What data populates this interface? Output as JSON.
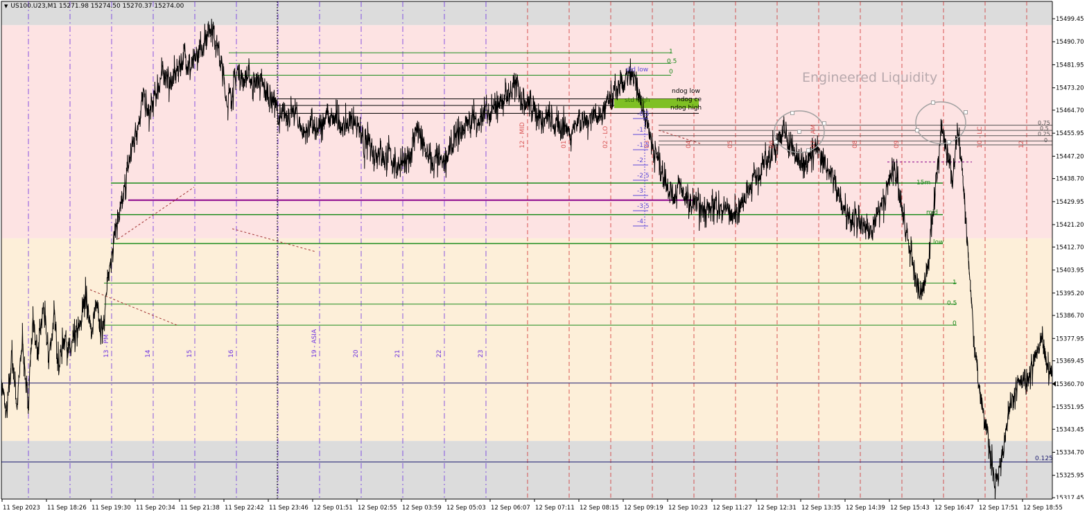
{
  "header": {
    "symbol_line": "US100.U23,M1  15271.98 15274.50 15270.37 15274.00",
    "arrow_icon": "triangle-down-icon"
  },
  "watermark": "Engineered Liquidity",
  "colors": {
    "zone_gray": "#dcdcdc",
    "zone_pink": "#fde3e3",
    "zone_cream": "#fdefd9",
    "session_violet": "#6b2fe0",
    "session_red": "#d03030",
    "level_green": "#1a8a1a",
    "level_black": "#000000",
    "level_purple": "#8a008a",
    "fib_blue": "#5b48d8",
    "hline_navy": "#1a1a6e",
    "ndog_fill": "#7fc024",
    "circle_gray": "#a0a0a0"
  },
  "chart_data": {
    "type": "line",
    "symbol": "US100.U23",
    "timeframe": "M1",
    "ohlc": {
      "open": 15271.98,
      "high": 15274.5,
      "low": 15270.37,
      "close": 15274.0
    },
    "y_ticks": [
      "15499.45",
      "15490.70",
      "15481.95",
      "15473.20",
      "15464.70",
      "15455.95",
      "15447.20",
      "15438.70",
      "15429.95",
      "15421.20",
      "15412.70",
      "15403.95",
      "15395.20",
      "15386.70",
      "15377.95",
      "15369.45",
      "15360.70",
      "15351.95",
      "15343.45",
      "15334.70",
      "15325.95",
      "15317.45"
    ],
    "x_ticks": [
      "11 Sep 2023",
      "11 Sep 18:26",
      "11 Sep 19:30",
      "11 Sep 20:34",
      "11 Sep 21:38",
      "11 Sep 22:42",
      "11 Sep 23:46",
      "12 Sep 01:51",
      "12 Sep 02:55",
      "12 Sep 03:59",
      "12 Sep 05:03",
      "12 Sep 06:07",
      "12 Sep 07:11",
      "12 Sep 08:15",
      "12 Sep 09:19",
      "12 Sep 10:23",
      "12 Sep 11:27",
      "12 Sep 12:31",
      "12 Sep 13:35",
      "12 Sep 14:39",
      "12 Sep 15:43",
      "12 Sep 16:47",
      "12 Sep 17:51",
      "12 Sep 18:55"
    ],
    "ylim": [
      15316,
      15502
    ],
    "price_path": [
      [
        0,
        15362
      ],
      [
        0.5,
        15348
      ],
      [
        1,
        15372
      ],
      [
        1.5,
        15352
      ],
      [
        2,
        15378
      ],
      [
        2.5,
        15352
      ],
      [
        3,
        15385
      ],
      [
        3.5,
        15372
      ],
      [
        4,
        15390
      ],
      [
        4.5,
        15370
      ],
      [
        5,
        15386
      ],
      [
        5.5,
        15368
      ],
      [
        6,
        15380
      ],
      [
        6.5,
        15372
      ],
      [
        7,
        15378
      ],
      [
        7.5,
        15382
      ],
      [
        8,
        15396
      ],
      [
        8.5,
        15380
      ],
      [
        9,
        15390
      ],
      [
        9.5,
        15380
      ],
      [
        10,
        15394
      ],
      [
        10.5,
        15412
      ],
      [
        11,
        15422
      ],
      [
        11.5,
        15428
      ],
      [
        12,
        15442
      ],
      [
        12.5,
        15452
      ],
      [
        13,
        15460
      ],
      [
        13.5,
        15470
      ],
      [
        14,
        15462
      ],
      [
        14.5,
        15468
      ],
      [
        15,
        15475
      ],
      [
        15.5,
        15480
      ],
      [
        16,
        15474
      ],
      [
        16.5,
        15478
      ],
      [
        17,
        15482
      ],
      [
        17.5,
        15486
      ],
      [
        18,
        15480
      ],
      [
        18.5,
        15484
      ],
      [
        19,
        15488
      ],
      [
        19.5,
        15494
      ],
      [
        20,
        15497
      ],
      [
        20.5,
        15490
      ],
      [
        21,
        15480
      ],
      [
        21.5,
        15468
      ],
      [
        22,
        15472
      ],
      [
        22.5,
        15480
      ],
      [
        23,
        15476
      ],
      [
        23.5,
        15478
      ],
      [
        24,
        15474
      ],
      [
        24.5,
        15476
      ],
      [
        25,
        15472
      ],
      [
        25.5,
        15470
      ],
      [
        26,
        15468
      ],
      [
        26.5,
        15460
      ],
      [
        27,
        15464
      ],
      [
        27.5,
        15462
      ],
      [
        28,
        15464
      ],
      [
        28.5,
        15458
      ],
      [
        29,
        15456
      ],
      [
        29.5,
        15460
      ],
      [
        30,
        15455
      ],
      [
        30.5,
        15460
      ],
      [
        31,
        15463
      ],
      [
        31.5,
        15460
      ],
      [
        32,
        15462
      ],
      [
        32.5,
        15458
      ],
      [
        33,
        15460
      ],
      [
        33.5,
        15462
      ],
      [
        34,
        15458
      ],
      [
        34.5,
        15450
      ],
      [
        35,
        15453
      ],
      [
        35.5,
        15448
      ],
      [
        36,
        15450
      ],
      [
        36.5,
        15446
      ],
      [
        37,
        15448
      ],
      [
        37.5,
        15443
      ],
      [
        38,
        15446
      ],
      [
        38.5,
        15443
      ],
      [
        39,
        15450
      ],
      [
        39.5,
        15458
      ],
      [
        40,
        15452
      ],
      [
        40.5,
        15448
      ],
      [
        41,
        15444
      ],
      [
        41.5,
        15446
      ],
      [
        42,
        15444
      ],
      [
        42.5,
        15448
      ],
      [
        43,
        15452
      ],
      [
        43.5,
        15456
      ],
      [
        44,
        15458
      ],
      [
        44.5,
        15460
      ],
      [
        45,
        15462
      ],
      [
        45.5,
        15460
      ],
      [
        46,
        15464
      ],
      [
        46.5,
        15462
      ],
      [
        47,
        15466
      ],
      [
        47.5,
        15468
      ],
      [
        48,
        15470
      ],
      [
        48.5,
        15472
      ],
      [
        49,
        15474
      ],
      [
        49.5,
        15470
      ],
      [
        50,
        15468
      ],
      [
        50.5,
        15466
      ],
      [
        51,
        15464
      ],
      [
        51.5,
        15460
      ],
      [
        52,
        15462
      ],
      [
        52.5,
        15460
      ],
      [
        53,
        15458
      ],
      [
        53.5,
        15460
      ],
      [
        54,
        15456
      ],
      [
        54.5,
        15458
      ],
      [
        55,
        15462
      ],
      [
        55.5,
        15460
      ],
      [
        56,
        15462
      ],
      [
        56.5,
        15464
      ],
      [
        57,
        15462
      ],
      [
        57.5,
        15466
      ],
      [
        58,
        15468
      ],
      [
        58.5,
        15472
      ],
      [
        59,
        15474
      ],
      [
        59.5,
        15476
      ],
      [
        60,
        15478
      ],
      [
        60.5,
        15472
      ],
      [
        61,
        15466
      ],
      [
        61.5,
        15460
      ],
      [
        62,
        15450
      ],
      [
        62.5,
        15446
      ],
      [
        63,
        15440
      ],
      [
        63.5,
        15436
      ],
      [
        64,
        15432
      ],
      [
        64.5,
        15436
      ],
      [
        65,
        15432
      ],
      [
        65.5,
        15428
      ],
      [
        66,
        15430
      ],
      [
        66.5,
        15426
      ],
      [
        67,
        15428
      ],
      [
        67.5,
        15426
      ],
      [
        68,
        15430
      ],
      [
        68.5,
        15426
      ],
      [
        69,
        15428
      ],
      [
        69.5,
        15424
      ],
      [
        70,
        15426
      ],
      [
        70.5,
        15430
      ],
      [
        71,
        15434
      ],
      [
        71.5,
        15438
      ],
      [
        72,
        15440
      ],
      [
        72.5,
        15444
      ],
      [
        73,
        15446
      ],
      [
        73.5,
        15450
      ],
      [
        74,
        15455
      ],
      [
        74.5,
        15456
      ],
      [
        75,
        15452
      ],
      [
        75.5,
        15448
      ],
      [
        76,
        15444
      ],
      [
        76.5,
        15446
      ],
      [
        77,
        15448
      ],
      [
        77.5,
        15450
      ],
      [
        78,
        15446
      ],
      [
        78.5,
        15444
      ],
      [
        79,
        15440
      ],
      [
        79.5,
        15436
      ],
      [
        80,
        15428
      ],
      [
        80.5,
        15426
      ],
      [
        81,
        15424
      ],
      [
        81.5,
        15422
      ],
      [
        82,
        15420
      ],
      [
        82.5,
        15418
      ],
      [
        83,
        15422
      ],
      [
        83.5,
        15426
      ],
      [
        84,
        15430
      ],
      [
        84.5,
        15438
      ],
      [
        85,
        15444
      ],
      [
        85.5,
        15430
      ],
      [
        86,
        15420
      ],
      [
        86.5,
        15410
      ],
      [
        87,
        15400
      ],
      [
        87.5,
        15394
      ],
      [
        88,
        15402
      ],
      [
        88.5,
        15420
      ],
      [
        89,
        15440
      ],
      [
        89.5,
        15458
      ],
      [
        90,
        15448
      ],
      [
        90.5,
        15440
      ],
      [
        91,
        15455
      ],
      [
        91.5,
        15440
      ],
      [
        92,
        15410
      ],
      [
        92.5,
        15380
      ],
      [
        93,
        15360
      ],
      [
        93.5,
        15348
      ],
      [
        94,
        15336
      ],
      [
        94.5,
        15324
      ],
      [
        95,
        15328
      ],
      [
        95.5,
        15340
      ],
      [
        96,
        15352
      ],
      [
        96.5,
        15360
      ],
      [
        97,
        15364
      ],
      [
        97.5,
        15360
      ],
      [
        98,
        15366
      ],
      [
        98.5,
        15372
      ],
      [
        99,
        15376
      ],
      [
        99.5,
        15368
      ],
      [
        100,
        15364
      ]
    ],
    "time_labels_violet": [
      "13 - PM",
      "14",
      "15",
      "16",
      "19 - ASIA",
      "20",
      "21",
      "22",
      "23"
    ],
    "time_labels_red": [
      "12 - MID",
      "01",
      "02 - LO",
      "03",
      "04",
      "05",
      "06",
      "07 - AM",
      "08",
      "09",
      "10 - LC",
      "12"
    ],
    "fib_right_labels": [
      "1",
      "0.5",
      "0"
    ],
    "fib_right_labels_lower": [
      "1",
      "0.5",
      "0"
    ],
    "std_labels": [
      "-0.5",
      "-1",
      "-1.5",
      "-2",
      "-2.5",
      "-3",
      "-3.5",
      "-4"
    ],
    "level_labels": {
      "std_low": "std low",
      "std_high": "std high",
      "ndog_low": "ndog low",
      "ndog_ce": "ndog ce",
      "ndog_high": "ndog high",
      "m15": "15m",
      "mid": "mid",
      "low": "low"
    },
    "right_small_labels": [
      "0.75",
      "0.5",
      "0.25",
      "0"
    ],
    "hline_label": "0.125"
  }
}
